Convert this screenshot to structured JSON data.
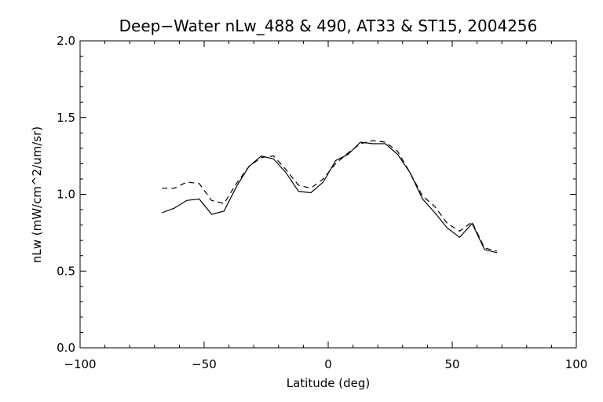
{
  "chart_data": {
    "type": "line",
    "title": "Deep−Water nLw_488 & 490, AT33 & ST15, 2004256",
    "xlabel": "Latitude (deg)",
    "ylabel": "nLw (mW/cm^2/um/sr)",
    "xlim": [
      -100,
      100
    ],
    "ylim": [
      0.0,
      2.0
    ],
    "x_major_ticks": [
      -100,
      -50,
      0,
      50,
      100
    ],
    "x_tick_labels": [
      "−100",
      "−50",
      "0",
      "50",
      "100"
    ],
    "x_minor_step": 10,
    "y_major_ticks": [
      0.0,
      0.5,
      1.0,
      1.5,
      2.0
    ],
    "y_tick_labels": [
      "0.0",
      "0.5",
      "1.0",
      "1.5",
      "2.0"
    ],
    "y_minor_step": 0.1,
    "grid": false,
    "series": [
      {
        "style": "solid",
        "x": [
          -67,
          -62,
          -57,
          -52,
          -47,
          -42,
          -37,
          -32,
          -27,
          -22,
          -17,
          -12,
          -7,
          -2,
          3,
          8,
          13,
          18,
          23,
          28,
          33,
          38,
          43,
          48,
          53,
          58,
          63,
          68
        ],
        "y": [
          0.88,
          0.91,
          0.96,
          0.97,
          0.87,
          0.89,
          1.05,
          1.18,
          1.25,
          1.23,
          1.14,
          1.02,
          1.01,
          1.08,
          1.22,
          1.26,
          1.34,
          1.33,
          1.33,
          1.26,
          1.14,
          0.97,
          0.88,
          0.78,
          0.72,
          0.81,
          0.64,
          0.62
        ]
      },
      {
        "style": "dashed",
        "x": [
          -67,
          -62,
          -57,
          -52,
          -47,
          -42,
          -37,
          -32,
          -27,
          -22,
          -17,
          -12,
          -7,
          -2,
          3,
          8,
          13,
          18,
          23,
          28,
          33,
          38,
          43,
          48,
          53,
          58,
          63,
          68
        ],
        "y": [
          1.04,
          1.04,
          1.08,
          1.07,
          0.96,
          0.94,
          1.07,
          1.18,
          1.24,
          1.25,
          1.16,
          1.06,
          1.04,
          1.1,
          1.2,
          1.27,
          1.33,
          1.35,
          1.34,
          1.28,
          1.14,
          0.99,
          0.92,
          0.81,
          0.76,
          0.82,
          0.65,
          0.63
        ]
      }
    ]
  }
}
